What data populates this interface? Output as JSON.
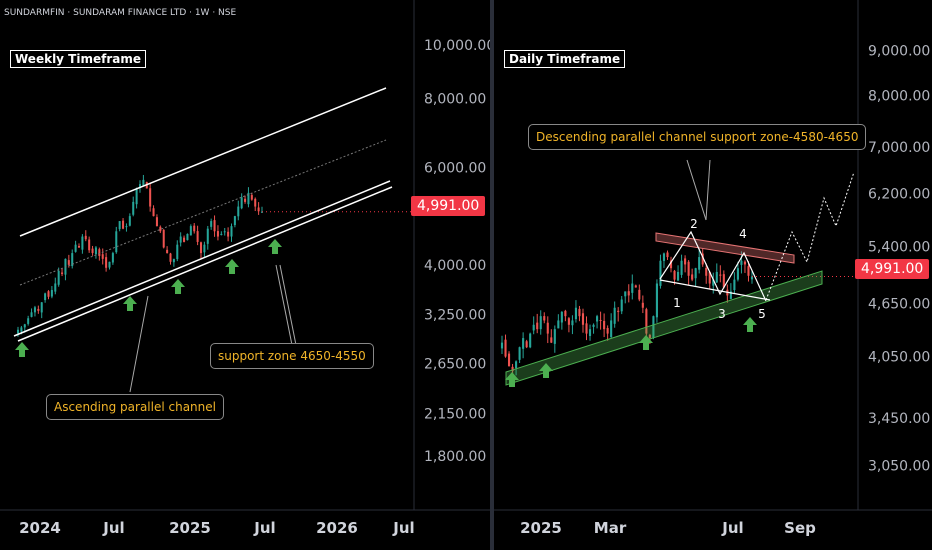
{
  "header": "SUNDARMFIN · SUNDARAM FINANCE LTD · 1W · NSE",
  "colors": {
    "up_candle": "#26a69a",
    "down_candle": "#ef5350",
    "arrow": "#4caf50",
    "annotation_text": "#f0b429",
    "price_badge": "#f23645",
    "channel_fill": "#4caf50",
    "resistance_band": "#e57373"
  },
  "current_price_label": "4,991.00",
  "chart_data": [
    {
      "type": "candlestick",
      "title": "Weekly Timeframe",
      "y_scale": "log",
      "ylim": [
        1550,
        11200
      ],
      "y_ticks": [
        "10,000.00",
        "8,000.00",
        "6,000.00",
        "4,000.00",
        "3,250.00",
        "2,650.00",
        "2,150.00",
        "1,800.00"
      ],
      "x_ticks": [
        "2024",
        "Jul",
        "2025",
        "Jul",
        "2026",
        "Jul"
      ],
      "current_price": 4991,
      "series": [
        {
          "name": "",
          "x_start": "2023-11",
          "x_end": "2025-06",
          "closes": [
            3050,
            3080,
            3120,
            3200,
            3280,
            3350,
            3300,
            3420,
            3550,
            3500,
            3600,
            3700,
            3900,
            3850,
            4100,
            4000,
            4200,
            4350,
            4300,
            4500,
            4450,
            4250,
            4200,
            4300,
            4150,
            4100,
            3950,
            4050,
            4200,
            4600,
            4800,
            4650,
            4700,
            4900,
            5200,
            5500,
            5600,
            5700,
            5500,
            5100,
            4900,
            4700,
            4600,
            4300,
            4200,
            4050,
            4100,
            4350,
            4500,
            4400,
            4550,
            4700,
            4600,
            4400,
            4200,
            4350,
            4650,
            4800,
            4600,
            4500,
            4550,
            4600,
            4500,
            4700,
            4900,
            5100,
            5300,
            5200,
            5400,
            5250,
            5100,
            5000,
            4991
          ]
        }
      ],
      "annotations": [
        "support zone 4650-4550",
        "Ascending parallel channel"
      ]
    },
    {
      "type": "candlestick",
      "title": "Daily Timeframe",
      "y_scale": "log",
      "ylim": [
        2750,
        10000
      ],
      "y_ticks": [
        "9,000.00",
        "8,000.00",
        "7,000.00",
        "6,200.00",
        "5,400.00",
        "4,650.00",
        "4,050.00",
        "3,450.00",
        "3,050.00"
      ],
      "x_ticks": [
        "2025",
        "Mar",
        "Jul",
        "Sep"
      ],
      "current_price": 4991,
      "series": [
        {
          "name": "",
          "x_start": "2024-12",
          "x_end": "2025-07",
          "closes": [
            4200,
            4050,
            3950,
            3900,
            4000,
            4150,
            4250,
            4150,
            4300,
            4400,
            4350,
            4500,
            4450,
            4300,
            4200,
            4350,
            4450,
            4550,
            4500,
            4400,
            4450,
            4600,
            4500,
            4400,
            4300,
            4350,
            4400,
            4500,
            4450,
            4350,
            4300,
            4450,
            4600,
            4550,
            4700,
            4800,
            4750,
            4900,
            4850,
            4700,
            4600,
            4300,
            4250,
            4500,
            4900,
            5200,
            5300,
            5250,
            5100,
            4950,
            5050,
            5200,
            5150,
            5000,
            4950,
            5100,
            5250,
            5150,
            5000,
            4900,
            4950,
            5050,
            5000,
            4850,
            4750,
            4800,
            4950,
            5100,
            5200,
            5150,
            5000,
            4991
          ]
        }
      ],
      "annotations": [
        "Descending parallel channel support zone-4580-4650"
      ],
      "wave_labels": [
        "1",
        "2",
        "3",
        "4",
        "5"
      ]
    }
  ]
}
